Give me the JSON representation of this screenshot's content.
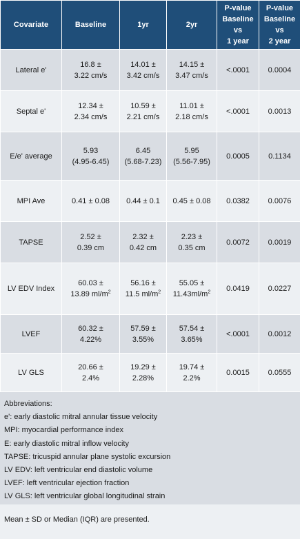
{
  "headers": {
    "covariate": "Covariate",
    "baseline": "Baseline",
    "yr1": "1yr",
    "yr2": "2yr",
    "p_base_1": [
      "P-value",
      "Baseline",
      "vs",
      "1 year"
    ],
    "p_base_2": [
      "P-value",
      "Baseline",
      "vs",
      "2 year"
    ]
  },
  "rows": [
    {
      "name": "Lateral e'",
      "baseline": [
        "16.8 ±",
        "3.22 cm/s"
      ],
      "yr1": [
        "14.01 ±",
        "3.42 cm/s"
      ],
      "yr2": [
        "14.15 ±",
        "3.47 cm/s"
      ],
      "p1": "<.0001",
      "p2": "0.0004"
    },
    {
      "name": "Septal e'",
      "baseline": [
        "12.34 ±",
        "2.34 cm/s"
      ],
      "yr1": [
        "10.59 ±",
        "2.21 cm/s"
      ],
      "yr2": [
        "11.01 ±",
        "2.18 cm/s"
      ],
      "p1": "<.0001",
      "p2": "0.0013"
    },
    {
      "name": "E/e' average",
      "baseline": [
        "5.93",
        "(4.95-6.45)"
      ],
      "yr1": [
        "6.45",
        "(5.68-7.23)"
      ],
      "yr2": [
        "5.95",
        "(5.56-7.95)"
      ],
      "p1": "0.0005",
      "p2": "0.1134"
    },
    {
      "name": "MPI Ave",
      "baseline": [
        "0.41 ± 0.08"
      ],
      "yr1": [
        "0.44 ± 0.1"
      ],
      "yr2": [
        "0.45 ± 0.08"
      ],
      "p1": "0.0382",
      "p2": "0.0076"
    },
    {
      "name": "TAPSE",
      "baseline": [
        "2.52 ±",
        "0.39 cm"
      ],
      "yr1": [
        "2.32 ±",
        "0.42 cm"
      ],
      "yr2": [
        "2.23 ±",
        "0.35 cm"
      ],
      "p1": "0.0072",
      "p2": "0.0019"
    },
    {
      "name": "LV EDV Index",
      "baseline": [
        "60.03 ±",
        "13.89 ml/m"
      ],
      "yr1": [
        "56.16 ±",
        "11.5 ml/m"
      ],
      "yr2": [
        "55.05 ±",
        "11.43ml/m"
      ],
      "p1": "0.0419",
      "p2": "0.0227",
      "superscript": "2"
    },
    {
      "name": "LVEF",
      "baseline": [
        "60.32 ±",
        "4.22%"
      ],
      "yr1": [
        "57.59 ±",
        "3.55%"
      ],
      "yr2": [
        "57.54 ±",
        "3.65%"
      ],
      "p1": "<.0001",
      "p2": "0.0012"
    },
    {
      "name": "LV GLS",
      "baseline": [
        "20.66 ±",
        "2.4%"
      ],
      "yr1": [
        "19.29 ±",
        "2.28%"
      ],
      "yr2": [
        "19.74 ±",
        "2.2%"
      ],
      "p1": "0.0015",
      "p2": "0.0555"
    }
  ],
  "abbreviations": [
    "Abbreviations:",
    "e': early diastolic mitral annular tissue velocity",
    "MPI: myocardial performance index",
    "E: early diastolic mitral inflow velocity",
    "TAPSE: tricuspid annular plane systolic excursion",
    "LV EDV: left ventricular end diastolic volume",
    "LVEF: left ventricular ejection fraction",
    "LV GLS: left ventricular global longitudinal strain"
  ],
  "footer": "Mean ± SD or Median (IQR) are presented.",
  "colors": {
    "header_bg": "#1f4e79",
    "row_dark": "#d9dde3",
    "row_light": "#edf0f3"
  }
}
